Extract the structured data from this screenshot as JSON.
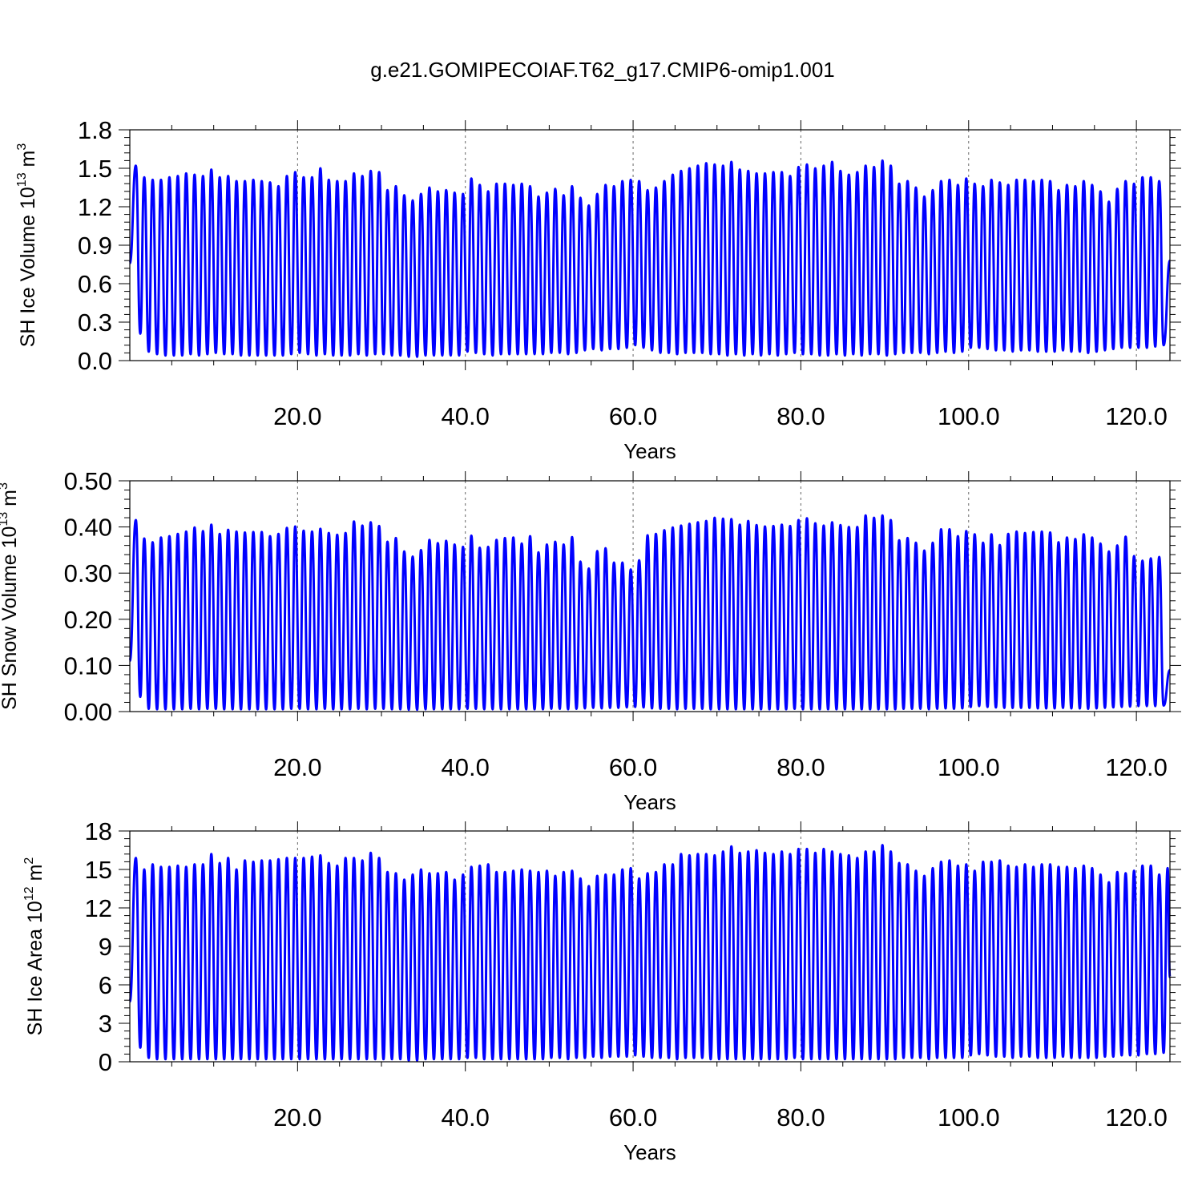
{
  "title": "g.e21.GOMIPECOIAF.T62_g17.CMIP6-omip1.001",
  "colors": {
    "line": "#0000ff",
    "axis": "#000000",
    "grid": "#666666"
  },
  "chart_data": [
    {
      "type": "line",
      "ylabel_main": "SH Ice Volume 10",
      "ylabel_exp": "13",
      "ylabel_unit": "m",
      "ylabel_unit_exp": "3",
      "xlabel": "Years",
      "ylim": [
        0,
        1.8
      ],
      "yticks": [
        0,
        0.3,
        0.6,
        0.9,
        1.2,
        1.5,
        1.8
      ],
      "ytick_labels": [
        "0.0",
        "0.3",
        "0.6",
        "0.9",
        "1.2",
        "1.5",
        "1.8"
      ],
      "xlim": [
        0,
        124
      ],
      "xticks": [
        20,
        40,
        60,
        80,
        100,
        120
      ],
      "xtick_labels": [
        "20.0",
        "40.0",
        "60.0",
        "80.0",
        "100.0",
        "120.0"
      ],
      "grid": "dashed vertical at major x ticks",
      "first_value": 0.76,
      "last_value": 0.78,
      "annual_max": [
        1.52,
        1.43,
        1.41,
        1.41,
        1.43,
        1.44,
        1.46,
        1.45,
        1.44,
        1.49,
        1.43,
        1.44,
        1.4,
        1.4,
        1.41,
        1.4,
        1.39,
        1.36,
        1.44,
        1.47,
        1.43,
        1.43,
        1.5,
        1.41,
        1.4,
        1.4,
        1.46,
        1.44,
        1.48,
        1.47,
        1.33,
        1.36,
        1.29,
        1.25,
        1.3,
        1.35,
        1.32,
        1.33,
        1.31,
        1.3,
        1.42,
        1.37,
        1.32,
        1.38,
        1.38,
        1.37,
        1.38,
        1.36,
        1.28,
        1.31,
        1.34,
        1.29,
        1.36,
        1.27,
        1.21,
        1.3,
        1.37,
        1.36,
        1.4,
        1.41,
        1.4,
        1.33,
        1.35,
        1.4,
        1.45,
        1.48,
        1.5,
        1.52,
        1.54,
        1.53,
        1.52,
        1.55,
        1.49,
        1.48,
        1.46,
        1.46,
        1.47,
        1.47,
        1.44,
        1.51,
        1.53,
        1.5,
        1.52,
        1.55,
        1.48,
        1.45,
        1.47,
        1.52,
        1.51,
        1.56,
        1.52,
        1.38,
        1.4,
        1.35,
        1.28,
        1.33,
        1.4,
        1.41,
        1.37,
        1.42,
        1.38,
        1.36,
        1.41,
        1.39,
        1.37,
        1.41,
        1.41,
        1.4,
        1.41,
        1.4,
        1.33,
        1.37,
        1.36,
        1.4,
        1.37,
        1.32,
        1.24,
        1.34,
        1.4,
        1.38,
        1.43,
        1.43,
        1.4
      ],
      "annual_min": [
        0.21,
        0.07,
        0.05,
        0.04,
        0.04,
        0.04,
        0.05,
        0.04,
        0.05,
        0.06,
        0.05,
        0.05,
        0.04,
        0.04,
        0.04,
        0.04,
        0.04,
        0.04,
        0.05,
        0.06,
        0.05,
        0.04,
        0.05,
        0.04,
        0.04,
        0.04,
        0.05,
        0.04,
        0.05,
        0.05,
        0.04,
        0.04,
        0.03,
        0.03,
        0.04,
        0.04,
        0.04,
        0.04,
        0.04,
        0.07,
        0.06,
        0.05,
        0.04,
        0.05,
        0.05,
        0.05,
        0.05,
        0.05,
        0.05,
        0.06,
        0.06,
        0.05,
        0.06,
        0.08,
        0.09,
        0.08,
        0.09,
        0.09,
        0.1,
        0.12,
        0.1,
        0.08,
        0.06,
        0.06,
        0.05,
        0.06,
        0.06,
        0.06,
        0.05,
        0.05,
        0.04,
        0.05,
        0.04,
        0.05,
        0.04,
        0.05,
        0.04,
        0.05,
        0.06,
        0.05,
        0.05,
        0.04,
        0.04,
        0.05,
        0.04,
        0.05,
        0.04,
        0.05,
        0.05,
        0.04,
        0.05,
        0.06,
        0.06,
        0.06,
        0.05,
        0.06,
        0.07,
        0.06,
        0.07,
        0.1,
        0.1,
        0.09,
        0.08,
        0.08,
        0.07,
        0.08,
        0.08,
        0.07,
        0.07,
        0.07,
        0.08,
        0.07,
        0.07,
        0.06,
        0.07,
        0.08,
        0.09,
        0.1,
        0.1,
        0.1,
        0.1,
        0.11,
        0.12
      ]
    },
    {
      "type": "line",
      "ylabel_main": "SH Snow Volume 10",
      "ylabel_exp": "13",
      "ylabel_unit": "m",
      "ylabel_unit_exp": "3",
      "xlabel": "Years",
      "ylim": [
        0,
        0.5
      ],
      "yticks": [
        0,
        0.1,
        0.2,
        0.3,
        0.4,
        0.5
      ],
      "ytick_labels": [
        "0.00",
        "0.10",
        "0.20",
        "0.30",
        "0.40",
        "0.50"
      ],
      "xlim": [
        0,
        124
      ],
      "xticks": [
        20,
        40,
        60,
        80,
        100,
        120
      ],
      "xtick_labels": [
        "20.0",
        "40.0",
        "60.0",
        "80.0",
        "100.0",
        "120.0"
      ],
      "grid": "dashed vertical at major x ticks",
      "first_value": 0.11,
      "last_value": 0.09,
      "annual_max": [
        0.415,
        0.375,
        0.367,
        0.377,
        0.38,
        0.385,
        0.39,
        0.399,
        0.391,
        0.405,
        0.385,
        0.394,
        0.39,
        0.388,
        0.389,
        0.389,
        0.38,
        0.385,
        0.398,
        0.401,
        0.392,
        0.39,
        0.396,
        0.387,
        0.383,
        0.387,
        0.412,
        0.403,
        0.41,
        0.402,
        0.368,
        0.376,
        0.347,
        0.336,
        0.35,
        0.372,
        0.365,
        0.37,
        0.362,
        0.357,
        0.381,
        0.355,
        0.357,
        0.372,
        0.376,
        0.377,
        0.364,
        0.38,
        0.345,
        0.362,
        0.368,
        0.362,
        0.378,
        0.325,
        0.31,
        0.348,
        0.354,
        0.323,
        0.323,
        0.308,
        0.328,
        0.382,
        0.385,
        0.393,
        0.399,
        0.403,
        0.407,
        0.41,
        0.413,
        0.42,
        0.418,
        0.417,
        0.405,
        0.413,
        0.404,
        0.401,
        0.402,
        0.405,
        0.402,
        0.415,
        0.419,
        0.408,
        0.403,
        0.41,
        0.404,
        0.4,
        0.4,
        0.425,
        0.42,
        0.425,
        0.415,
        0.371,
        0.376,
        0.366,
        0.349,
        0.366,
        0.395,
        0.395,
        0.38,
        0.391,
        0.384,
        0.366,
        0.384,
        0.361,
        0.385,
        0.39,
        0.387,
        0.389,
        0.39,
        0.388,
        0.367,
        0.377,
        0.374,
        0.384,
        0.377,
        0.364,
        0.347,
        0.36,
        0.379,
        0.337,
        0.327,
        0.332,
        0.335
      ],
      "annual_min": [
        0.032,
        0.006,
        0.005,
        0.005,
        0.005,
        0.005,
        0.006,
        0.005,
        0.006,
        0.006,
        0.005,
        0.005,
        0.005,
        0.005,
        0.005,
        0.005,
        0.005,
        0.005,
        0.006,
        0.006,
        0.005,
        0.005,
        0.006,
        0.005,
        0.005,
        0.005,
        0.006,
        0.005,
        0.006,
        0.006,
        0.005,
        0.005,
        0.004,
        0.004,
        0.005,
        0.005,
        0.005,
        0.005,
        0.005,
        0.006,
        0.006,
        0.005,
        0.005,
        0.005,
        0.005,
        0.005,
        0.005,
        0.005,
        0.005,
        0.006,
        0.006,
        0.005,
        0.006,
        0.007,
        0.008,
        0.007,
        0.008,
        0.008,
        0.009,
        0.01,
        0.009,
        0.007,
        0.006,
        0.006,
        0.005,
        0.006,
        0.006,
        0.006,
        0.005,
        0.005,
        0.005,
        0.005,
        0.005,
        0.005,
        0.005,
        0.005,
        0.005,
        0.005,
        0.006,
        0.005,
        0.005,
        0.005,
        0.005,
        0.005,
        0.005,
        0.005,
        0.005,
        0.005,
        0.005,
        0.005,
        0.005,
        0.006,
        0.006,
        0.006,
        0.005,
        0.006,
        0.007,
        0.006,
        0.007,
        0.01,
        0.012,
        0.01,
        0.009,
        0.008,
        0.008,
        0.008,
        0.008,
        0.007,
        0.007,
        0.007,
        0.008,
        0.007,
        0.007,
        0.006,
        0.007,
        0.008,
        0.009,
        0.01,
        0.011,
        0.012,
        0.012,
        0.012,
        0.013
      ]
    },
    {
      "type": "line",
      "ylabel_main": "SH Ice Area 10",
      "ylabel_exp": "12",
      "ylabel_unit": "m",
      "ylabel_unit_exp": "2",
      "xlabel": "Years",
      "ylim": [
        0,
        18
      ],
      "yticks": [
        0,
        3,
        6,
        9,
        12,
        15,
        18
      ],
      "ytick_labels": [
        "0",
        "3",
        "6",
        "9",
        "12",
        "15",
        "18"
      ],
      "xlim": [
        0,
        124
      ],
      "xticks": [
        20,
        40,
        60,
        80,
        100,
        120
      ],
      "xtick_labels": [
        "20.0",
        "40.0",
        "60.0",
        "80.0",
        "100.0",
        "120.0"
      ],
      "grid": "dashed vertical at major x ticks",
      "first_value": 4.7,
      "last_value": 6.6,
      "annual_max": [
        15.9,
        15.0,
        15.4,
        15.2,
        15.2,
        15.3,
        15.2,
        15.4,
        15.4,
        16.2,
        15.5,
        15.9,
        15.0,
        15.7,
        15.6,
        15.7,
        15.7,
        15.8,
        15.9,
        15.9,
        15.9,
        16.0,
        16.1,
        15.5,
        15.3,
        15.9,
        15.9,
        15.7,
        16.3,
        15.9,
        14.8,
        14.7,
        14.2,
        14.6,
        15.0,
        14.7,
        14.7,
        14.8,
        14.2,
        14.6,
        15.2,
        15.3,
        15.4,
        14.8,
        14.8,
        14.9,
        15.0,
        14.9,
        14.8,
        14.9,
        14.5,
        14.8,
        14.9,
        14.3,
        13.7,
        14.5,
        14.6,
        14.6,
        15.0,
        15.1,
        14.3,
        14.7,
        14.8,
        15.4,
        15.4,
        16.2,
        16.1,
        16.2,
        16.2,
        16.1,
        16.4,
        16.8,
        16.3,
        16.4,
        16.5,
        16.3,
        16.2,
        16.4,
        16.2,
        16.6,
        16.6,
        16.3,
        16.6,
        16.4,
        16.2,
        16.1,
        15.9,
        16.4,
        16.4,
        16.9,
        16.4,
        15.5,
        15.4,
        14.9,
        14.5,
        15.1,
        15.6,
        15.7,
        15.3,
        15.4,
        14.9,
        15.6,
        15.6,
        15.7,
        15.3,
        15.2,
        15.4,
        15.2,
        15.4,
        15.4,
        15.2,
        15.2,
        15.1,
        15.3,
        15.1,
        14.6,
        14.0,
        14.8,
        14.7,
        14.9,
        15.3,
        15.3,
        14.6,
        15.1
      ],
      "annual_min": [
        1.1,
        0.3,
        0.2,
        0.2,
        0.2,
        0.2,
        0.2,
        0.2,
        0.2,
        0.2,
        0.2,
        0.2,
        0.2,
        0.2,
        0.2,
        0.2,
        0.2,
        0.2,
        0.2,
        0.2,
        0.2,
        0.2,
        0.2,
        0.2,
        0.2,
        0.2,
        0.2,
        0.2,
        0.2,
        0.2,
        0.2,
        0.2,
        0.1,
        0.1,
        0.2,
        0.2,
        0.2,
        0.2,
        0.2,
        0.3,
        0.3,
        0.2,
        0.2,
        0.2,
        0.2,
        0.2,
        0.2,
        0.2,
        0.2,
        0.3,
        0.3,
        0.2,
        0.3,
        0.3,
        0.4,
        0.3,
        0.4,
        0.4,
        0.4,
        0.5,
        0.4,
        0.3,
        0.3,
        0.3,
        0.2,
        0.3,
        0.3,
        0.3,
        0.2,
        0.2,
        0.2,
        0.2,
        0.2,
        0.2,
        0.2,
        0.2,
        0.2,
        0.2,
        0.3,
        0.2,
        0.2,
        0.2,
        0.2,
        0.2,
        0.2,
        0.2,
        0.2,
        0.2,
        0.2,
        0.2,
        0.2,
        0.3,
        0.3,
        0.3,
        0.2,
        0.3,
        0.3,
        0.3,
        0.3,
        0.5,
        0.6,
        0.5,
        0.4,
        0.4,
        0.3,
        0.4,
        0.4,
        0.3,
        0.3,
        0.3,
        0.4,
        0.3,
        0.3,
        0.3,
        0.3,
        0.4,
        0.4,
        0.5,
        0.5,
        0.5,
        0.6,
        0.6,
        0.7
      ]
    }
  ]
}
